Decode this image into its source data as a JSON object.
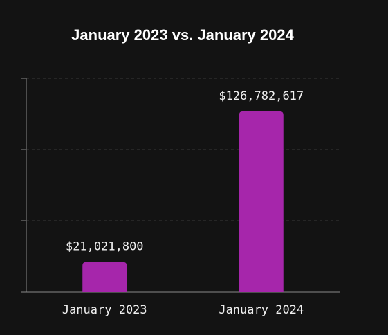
{
  "chart_data": {
    "type": "bar",
    "title": "January 2023 vs. January 2024",
    "categories": [
      "January 2023",
      "January 2024"
    ],
    "values": [
      21021800,
      126782617
    ],
    "value_labels": [
      "$21,021,800",
      "$126,782,617"
    ],
    "color": "#a626ab",
    "ylim": [
      0,
      150000000
    ],
    "yticks": [
      0,
      50000000,
      100000000,
      150000000
    ],
    "grid": true
  }
}
